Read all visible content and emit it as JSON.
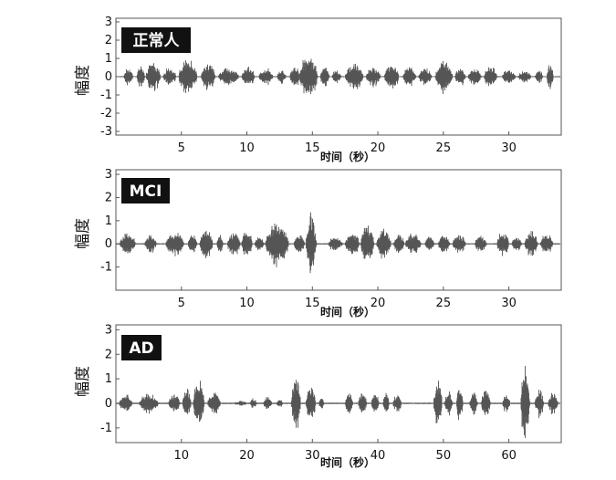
{
  "chart_data": [
    {
      "type": "line",
      "badge": "正常人",
      "xlabel": "时间（秒）",
      "ylabel": "幅度",
      "xlim": [
        0,
        34
      ],
      "ylim": [
        -3.2,
        3.2
      ],
      "x_ticks": [
        5,
        10,
        15,
        20,
        25,
        30
      ],
      "y_ticks": [
        -3,
        -2,
        -1,
        0,
        1,
        2,
        3
      ],
      "series_color": "#555555",
      "series": [
        {
          "bursts": [
            {
              "start": 0.6,
              "end": 1.3,
              "amp": 0.5
            },
            {
              "start": 1.6,
              "end": 2.2,
              "amp": 0.7
            },
            {
              "start": 2.3,
              "end": 3.4,
              "amp": 0.9
            },
            {
              "start": 3.6,
              "end": 4.6,
              "amp": 0.55
            },
            {
              "start": 4.8,
              "end": 6.2,
              "amp": 1.1
            },
            {
              "start": 6.5,
              "end": 7.6,
              "amp": 0.8
            },
            {
              "start": 7.8,
              "end": 9.4,
              "amp": 0.5
            },
            {
              "start": 9.6,
              "end": 10.6,
              "amp": 0.6
            },
            {
              "start": 10.9,
              "end": 12.0,
              "amp": 0.5
            },
            {
              "start": 12.3,
              "end": 13.0,
              "amp": 0.45
            },
            {
              "start": 13.3,
              "end": 14.0,
              "amp": 0.8
            },
            {
              "start": 14.0,
              "end": 15.4,
              "amp": 1.4
            },
            {
              "start": 15.6,
              "end": 16.3,
              "amp": 0.7
            },
            {
              "start": 16.5,
              "end": 17.2,
              "amp": 0.4
            },
            {
              "start": 17.5,
              "end": 18.9,
              "amp": 0.8
            },
            {
              "start": 19.1,
              "end": 20.2,
              "amp": 0.6
            },
            {
              "start": 20.5,
              "end": 21.6,
              "amp": 0.9
            },
            {
              "start": 21.9,
              "end": 22.9,
              "amp": 0.6
            },
            {
              "start": 23.1,
              "end": 24.1,
              "amp": 0.55
            },
            {
              "start": 24.4,
              "end": 25.7,
              "amp": 1.0
            },
            {
              "start": 25.9,
              "end": 26.7,
              "amp": 0.6
            },
            {
              "start": 26.9,
              "end": 27.9,
              "amp": 0.55
            },
            {
              "start": 28.1,
              "end": 29.1,
              "amp": 0.7
            },
            {
              "start": 29.5,
              "end": 30.5,
              "amp": 0.5
            },
            {
              "start": 30.7,
              "end": 31.7,
              "amp": 0.4
            },
            {
              "start": 32.0,
              "end": 32.6,
              "amp": 0.4
            },
            {
              "start": 32.9,
              "end": 33.4,
              "amp": 0.8
            }
          ]
        }
      ]
    },
    {
      "type": "line",
      "badge": "MCI",
      "xlabel": "时间（秒）",
      "ylabel": "幅度",
      "xlim": [
        0,
        34
      ],
      "ylim": [
        -2,
        3.2
      ],
      "x_ticks": [
        5,
        10,
        15,
        20,
        25,
        30
      ],
      "y_ticks": [
        -1,
        0,
        1,
        2,
        3
      ],
      "series_color": "#555555",
      "series": [
        {
          "bursts": [
            {
              "start": 0.3,
              "end": 1.5,
              "amp": 0.55
            },
            {
              "start": 2.2,
              "end": 3.1,
              "amp": 0.45
            },
            {
              "start": 3.8,
              "end": 5.2,
              "amp": 0.55
            },
            {
              "start": 5.5,
              "end": 6.2,
              "amp": 0.45
            },
            {
              "start": 6.4,
              "end": 7.4,
              "amp": 0.7
            },
            {
              "start": 7.7,
              "end": 8.2,
              "amp": 0.4
            },
            {
              "start": 8.5,
              "end": 9.5,
              "amp": 0.6
            },
            {
              "start": 9.6,
              "end": 10.4,
              "amp": 0.7
            },
            {
              "start": 10.6,
              "end": 11.3,
              "amp": 0.35
            },
            {
              "start": 11.4,
              "end": 13.2,
              "amp": 1.1
            },
            {
              "start": 13.6,
              "end": 14.4,
              "amp": 0.5
            },
            {
              "start": 14.5,
              "end": 15.3,
              "amp": 1.45
            },
            {
              "start": 16.2,
              "end": 17.3,
              "amp": 0.35
            },
            {
              "start": 17.5,
              "end": 18.6,
              "amp": 0.55
            },
            {
              "start": 18.7,
              "end": 19.7,
              "amp": 1.0
            },
            {
              "start": 19.9,
              "end": 21.0,
              "amp": 0.75
            },
            {
              "start": 21.2,
              "end": 22.0,
              "amp": 0.55
            },
            {
              "start": 22.1,
              "end": 23.3,
              "amp": 0.5
            },
            {
              "start": 23.6,
              "end": 24.3,
              "amp": 0.4
            },
            {
              "start": 24.6,
              "end": 25.5,
              "amp": 0.45
            },
            {
              "start": 25.7,
              "end": 26.7,
              "amp": 0.5
            },
            {
              "start": 27.4,
              "end": 28.3,
              "amp": 0.4
            },
            {
              "start": 29.1,
              "end": 30.0,
              "amp": 0.6
            },
            {
              "start": 30.2,
              "end": 31.0,
              "amp": 0.35
            },
            {
              "start": 31.2,
              "end": 32.2,
              "amp": 0.6
            },
            {
              "start": 32.4,
              "end": 33.4,
              "amp": 0.5
            }
          ]
        }
      ]
    },
    {
      "type": "line",
      "badge": "AD",
      "xlabel": "时间（秒）",
      "ylabel": "幅度",
      "xlim": [
        0,
        68
      ],
      "ylim": [
        -1.6,
        3.2
      ],
      "x_ticks": [
        10,
        20,
        30,
        40,
        50,
        60
      ],
      "y_ticks": [
        -1,
        0,
        1,
        2,
        3
      ],
      "series_color": "#555555",
      "series": [
        {
          "bursts": [
            {
              "start": 0.5,
              "end": 2.5,
              "amp": 0.4
            },
            {
              "start": 3.5,
              "end": 6.5,
              "amp": 0.45
            },
            {
              "start": 8.0,
              "end": 9.8,
              "amp": 0.4
            },
            {
              "start": 10.2,
              "end": 11.5,
              "amp": 0.65
            },
            {
              "start": 11.8,
              "end": 13.5,
              "amp": 1.05
            },
            {
              "start": 14.0,
              "end": 16.0,
              "amp": 0.5
            },
            {
              "start": 18.0,
              "end": 20.0,
              "amp": 0.12
            },
            {
              "start": 20.5,
              "end": 21.5,
              "amp": 0.25
            },
            {
              "start": 22.5,
              "end": 23.8,
              "amp": 0.3
            },
            {
              "start": 24.5,
              "end": 25.5,
              "amp": 0.2
            },
            {
              "start": 26.8,
              "end": 28.2,
              "amp": 1.2
            },
            {
              "start": 29.0,
              "end": 30.5,
              "amp": 0.85
            },
            {
              "start": 31.0,
              "end": 31.8,
              "amp": 0.3
            },
            {
              "start": 35.0,
              "end": 36.2,
              "amp": 0.45
            },
            {
              "start": 37.0,
              "end": 38.3,
              "amp": 0.5
            },
            {
              "start": 39.0,
              "end": 40.2,
              "amp": 0.45
            },
            {
              "start": 40.8,
              "end": 41.7,
              "amp": 0.6
            },
            {
              "start": 42.3,
              "end": 43.6,
              "amp": 0.45
            },
            {
              "start": 48.5,
              "end": 49.8,
              "amp": 1.0
            },
            {
              "start": 50.2,
              "end": 51.4,
              "amp": 0.55
            },
            {
              "start": 52.0,
              "end": 53.0,
              "amp": 0.8
            },
            {
              "start": 54.0,
              "end": 55.2,
              "amp": 0.55
            },
            {
              "start": 55.8,
              "end": 57.2,
              "amp": 0.6
            },
            {
              "start": 59.0,
              "end": 60.2,
              "amp": 0.4
            },
            {
              "start": 61.8,
              "end": 63.2,
              "amp": 1.75
            },
            {
              "start": 64.0,
              "end": 65.3,
              "amp": 0.7
            },
            {
              "start": 66.0,
              "end": 67.5,
              "amp": 0.55
            }
          ]
        }
      ]
    }
  ]
}
